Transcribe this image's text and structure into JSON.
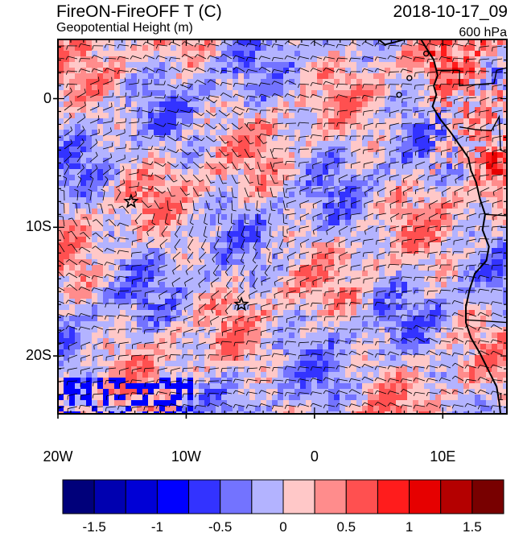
{
  "header": {
    "title_left": "FireON-FireOFF T (C)",
    "title_right": "2018-10-17_09",
    "subtitle_left": "Geopotential Height (m)",
    "subtitle_right": "600 hPa"
  },
  "axes": {
    "x_ticks": [
      {
        "label": "20W",
        "lon": -20
      },
      {
        "label": "10W",
        "lon": -10
      },
      {
        "label": "0",
        "lon": 0
      },
      {
        "label": "10E",
        "lon": 10
      }
    ],
    "y_ticks": [
      {
        "label": "0",
        "lat": 0
      },
      {
        "label": "10S",
        "lat": -10
      },
      {
        "label": "20S",
        "lat": -20
      }
    ],
    "lon_range": [
      -20,
      15
    ],
    "lat_range": [
      -24.5,
      4.6
    ]
  },
  "colorbar": {
    "colors": [
      "#00007a",
      "#0000b0",
      "#0000d6",
      "#0000ff",
      "#3333ff",
      "#7373ff",
      "#b3b3ff",
      "#ffc8c8",
      "#ff8c8c",
      "#ff5050",
      "#ff1c1c",
      "#e60000",
      "#b40000",
      "#780000"
    ],
    "labels": [
      {
        "text": "-1.5",
        "index": 1
      },
      {
        "text": "-1",
        "index": 3
      },
      {
        "text": "-0.5",
        "index": 5
      },
      {
        "text": "0",
        "index": 7
      },
      {
        "text": "0.5",
        "index": 9
      },
      {
        "text": "1",
        "index": 11
      },
      {
        "text": "1.5",
        "index": 13
      }
    ]
  },
  "markers": [
    {
      "name": "star",
      "lon": -14.3,
      "lat": -8.0
    },
    {
      "name": "star",
      "lon": -5.7,
      "lat": -16.0
    }
  ],
  "contour_label": "1"
}
